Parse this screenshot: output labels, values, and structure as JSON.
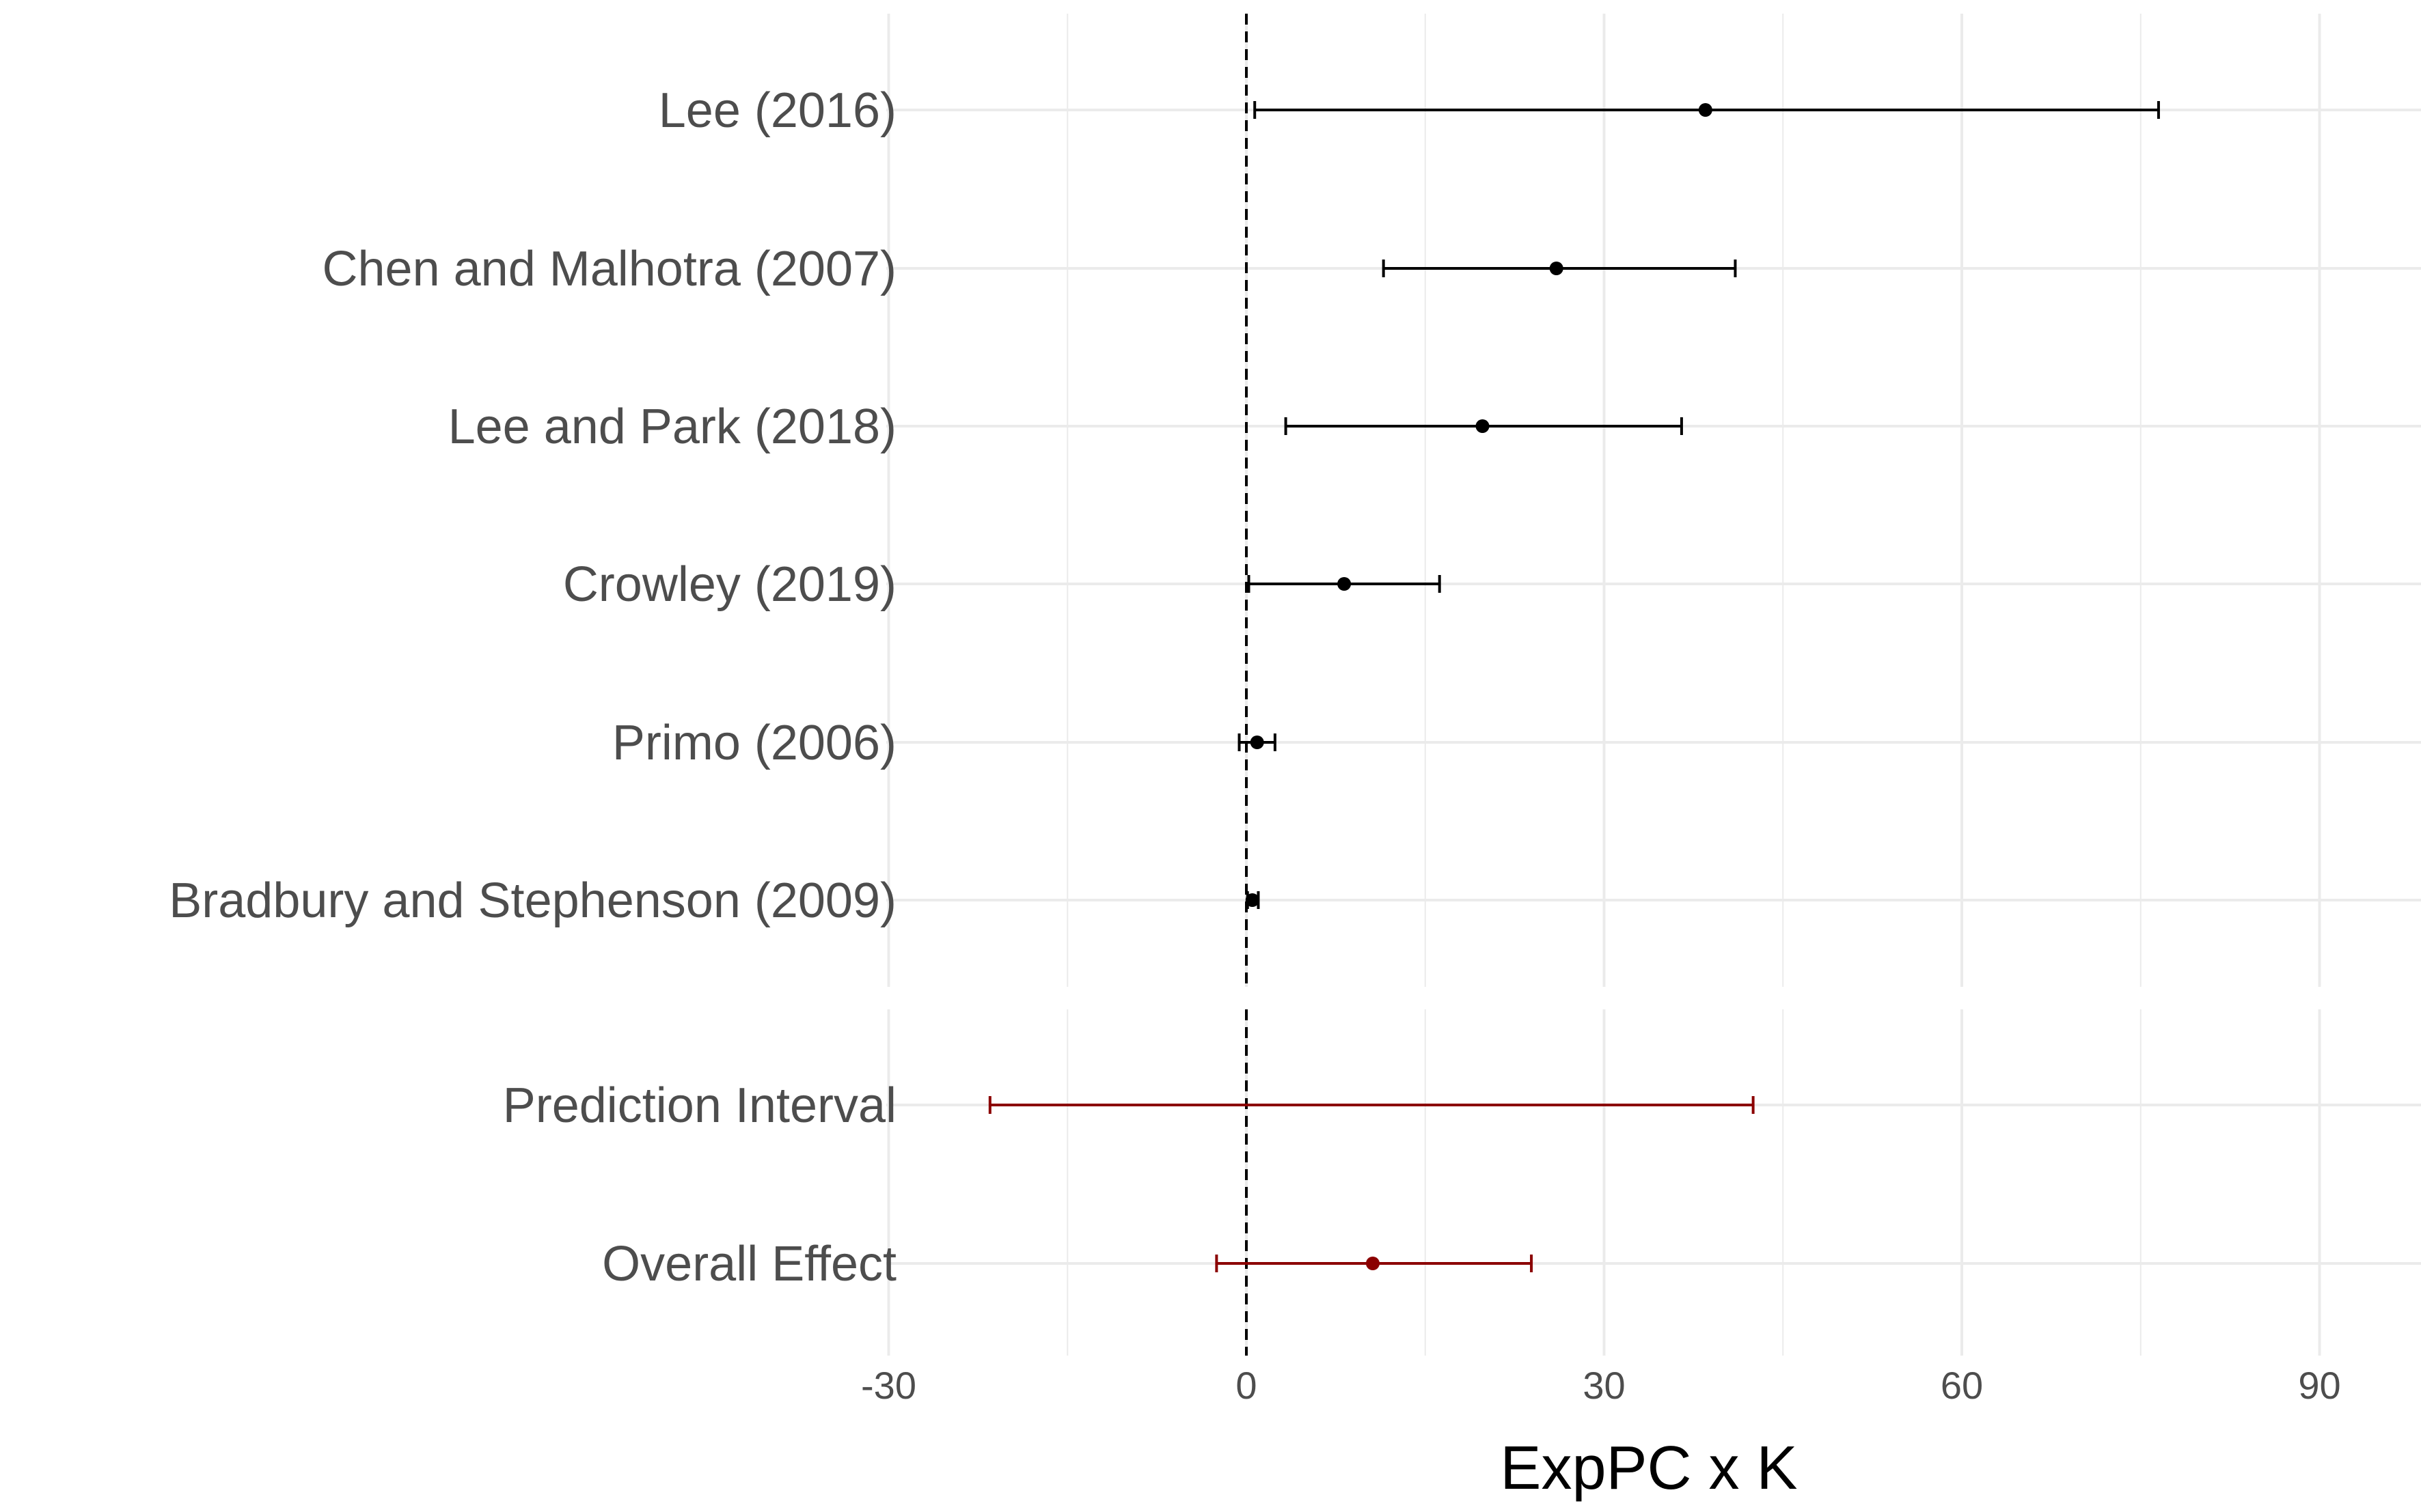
{
  "chart_data": {
    "type": "forest",
    "xlabel": "ExpPC x K",
    "xlim": [
      -30,
      95
    ],
    "xticks": [
      -30,
      0,
      30,
      60,
      90
    ],
    "xtick_labels": [
      "-30",
      "0",
      "30",
      "60",
      "90"
    ],
    "reference_line": 0,
    "grid": true,
    "colors": {
      "study": "#000000",
      "summary": "#8b0000",
      "grid": "#ebebeb"
    },
    "panels": [
      {
        "name": "studies",
        "rows": [
          {
            "label": "Lee (2016)",
            "estimate": 38.5,
            "lower": 0.7,
            "upper": 76.5
          },
          {
            "label": "Chen and Malhotra (2007)",
            "estimate": 26.0,
            "lower": 11.5,
            "upper": 41.0
          },
          {
            "label": "Lee and Park (2018)",
            "estimate": 19.8,
            "lower": 3.3,
            "upper": 36.5
          },
          {
            "label": "Crowley (2019)",
            "estimate": 8.2,
            "lower": 0.2,
            "upper": 16.2
          },
          {
            "label": "Primo (2006)",
            "estimate": 0.9,
            "lower": -0.6,
            "upper": 2.4
          },
          {
            "label": "Bradbury and Stephenson (2009)",
            "estimate": 0.5,
            "lower": 0.1,
            "upper": 1.0
          }
        ]
      },
      {
        "name": "summary",
        "rows": [
          {
            "label": "Prediction Interval",
            "estimate": null,
            "lower": -21.5,
            "upper": 42.5
          },
          {
            "label": "Overall Effect",
            "estimate": 10.6,
            "lower": -2.5,
            "upper": 23.9
          }
        ]
      }
    ]
  }
}
